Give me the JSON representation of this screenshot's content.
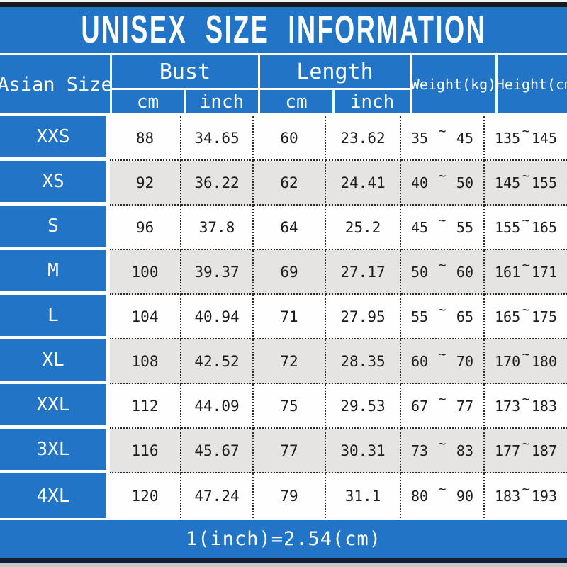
{
  "title": "UNISEX SIZE INFORMATION",
  "header": {
    "asian_size": "Asian Size",
    "bust": "Bust",
    "length": "Length",
    "weight": "Weight(kg)",
    "height": "Height(cm)",
    "cm": "cm",
    "inch": "inch"
  },
  "labels": {
    "tilde": "~"
  },
  "rows": [
    {
      "size": "XXS",
      "bust_cm": "88",
      "bust_inch": "34.65",
      "length_cm": "60",
      "length_inch": "23.62",
      "weight_min": "35",
      "weight_max": "45",
      "height_min": "135",
      "height_max": "145"
    },
    {
      "size": "XS",
      "bust_cm": "92",
      "bust_inch": "36.22",
      "length_cm": "62",
      "length_inch": "24.41",
      "weight_min": "40",
      "weight_max": "50",
      "height_min": "145",
      "height_max": "155"
    },
    {
      "size": "S",
      "bust_cm": "96",
      "bust_inch": "37.8",
      "length_cm": "64",
      "length_inch": "25.2",
      "weight_min": "45",
      "weight_max": "55",
      "height_min": "155",
      "height_max": "165"
    },
    {
      "size": "M",
      "bust_cm": "100",
      "bust_inch": "39.37",
      "length_cm": "69",
      "length_inch": "27.17",
      "weight_min": "50",
      "weight_max": "60",
      "height_min": "161",
      "height_max": "171"
    },
    {
      "size": "L",
      "bust_cm": "104",
      "bust_inch": "40.94",
      "length_cm": "71",
      "length_inch": "27.95",
      "weight_min": "55",
      "weight_max": "65",
      "height_min": "165",
      "height_max": "175"
    },
    {
      "size": "XL",
      "bust_cm": "108",
      "bust_inch": "42.52",
      "length_cm": "72",
      "length_inch": "28.35",
      "weight_min": "60",
      "weight_max": "70",
      "height_min": "170",
      "height_max": "180"
    },
    {
      "size": "XXL",
      "bust_cm": "112",
      "bust_inch": "44.09",
      "length_cm": "75",
      "length_inch": "29.53",
      "weight_min": "67",
      "weight_max": "77",
      "height_min": "173",
      "height_max": "183"
    },
    {
      "size": "3XL",
      "bust_cm": "116",
      "bust_inch": "45.67",
      "length_cm": "77",
      "length_inch": "30.31",
      "weight_min": "73",
      "weight_max": "83",
      "height_min": "177",
      "height_max": "187"
    },
    {
      "size": "4XL",
      "bust_cm": "120",
      "bust_inch": "47.24",
      "length_cm": "79",
      "length_inch": "31.1",
      "weight_min": "80",
      "weight_max": "90",
      "height_min": "183",
      "height_max": "193"
    }
  ],
  "footer": {
    "note": "1(inch)=2.54(cm)"
  },
  "colors": {
    "blue": "#2274c6",
    "row_white": "#fefefe",
    "row_alt": "#e5e4e2",
    "bar_top": "#1a1a1a",
    "bar_bottom": "#141e30",
    "text_dark": "#1c1c1c",
    "text_light": "#ffffff"
  },
  "chart_data": {
    "type": "table",
    "title": "UNISEX SIZE INFORMATION",
    "note": "1(inch)=2.54(cm)",
    "columns": [
      "Asian Size",
      "Bust cm",
      "Bust inch",
      "Length cm",
      "Length inch",
      "Weight(kg)",
      "Height(cm)"
    ],
    "rows": [
      [
        "XXS",
        88,
        34.65,
        60,
        23.62,
        "35~45",
        "135~145"
      ],
      [
        "XS",
        92,
        36.22,
        62,
        24.41,
        "40~50",
        "145~155"
      ],
      [
        "S",
        96,
        37.8,
        64,
        25.2,
        "45~55",
        "155~165"
      ],
      [
        "M",
        100,
        39.37,
        69,
        27.17,
        "50~60",
        "161~171"
      ],
      [
        "L",
        104,
        40.94,
        71,
        27.95,
        "55~65",
        "165~175"
      ],
      [
        "XL",
        108,
        42.52,
        72,
        28.35,
        "60~70",
        "170~180"
      ],
      [
        "XXL",
        112,
        44.09,
        75,
        29.53,
        "67~77",
        "173~183"
      ],
      [
        "3XL",
        116,
        45.67,
        77,
        30.31,
        "73~83",
        "177~187"
      ],
      [
        "4XL",
        120,
        47.24,
        79,
        31.1,
        "80~90",
        "183~193"
      ]
    ]
  }
}
